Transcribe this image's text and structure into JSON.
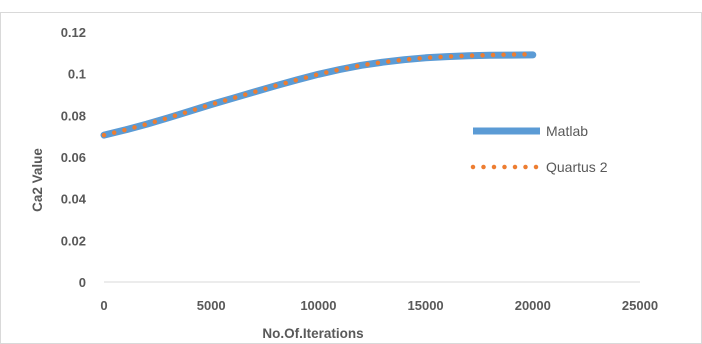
{
  "chart_data": {
    "type": "line",
    "title": "",
    "xlabel": "No.Of.Iterations",
    "ylabel": "Ca2 Value",
    "xlim": [
      0,
      25000
    ],
    "ylim": [
      0,
      0.12
    ],
    "x_ticks": [
      0,
      5000,
      10000,
      15000,
      20000,
      25000
    ],
    "y_ticks": [
      0,
      0.02,
      0.04,
      0.06,
      0.08,
      0.1,
      0.12
    ],
    "x_tick_labels": [
      "0",
      "5000",
      "10000",
      "15000",
      "20000",
      "25000"
    ],
    "y_tick_labels": [
      "0",
      "0.02",
      "0.04",
      "0.06",
      "0.08",
      "0.1",
      "0.12"
    ],
    "grid": false,
    "legend_position": "right",
    "series": [
      {
        "name": "Matlab",
        "style": "solid",
        "color": "#5B9BD5",
        "x": [
          0,
          1000,
          2000,
          3000,
          4000,
          5000,
          6000,
          7000,
          8000,
          9000,
          10000,
          11000,
          12000,
          13000,
          14000,
          15000,
          16000,
          17000,
          18000,
          19000,
          20000
        ],
        "y": [
          0.0705,
          0.073,
          0.0758,
          0.0788,
          0.082,
          0.0852,
          0.0882,
          0.0912,
          0.0942,
          0.097,
          0.0997,
          0.102,
          0.104,
          0.1055,
          0.1067,
          0.1076,
          0.1082,
          0.1086,
          0.1088,
          0.1089,
          0.109
        ]
      },
      {
        "name": "Quartus 2",
        "style": "dotted",
        "color": "#ED7D31",
        "x": [
          0,
          1000,
          2000,
          3000,
          4000,
          5000,
          6000,
          7000,
          8000,
          9000,
          10000,
          11000,
          12000,
          13000,
          14000,
          15000,
          16000,
          17000,
          18000,
          19000,
          20000
        ],
        "y": [
          0.0705,
          0.073,
          0.0758,
          0.0788,
          0.082,
          0.0852,
          0.0882,
          0.0912,
          0.0942,
          0.097,
          0.0997,
          0.102,
          0.104,
          0.1055,
          0.1067,
          0.1076,
          0.1082,
          0.1086,
          0.1089,
          0.1092,
          0.1093
        ]
      }
    ]
  }
}
